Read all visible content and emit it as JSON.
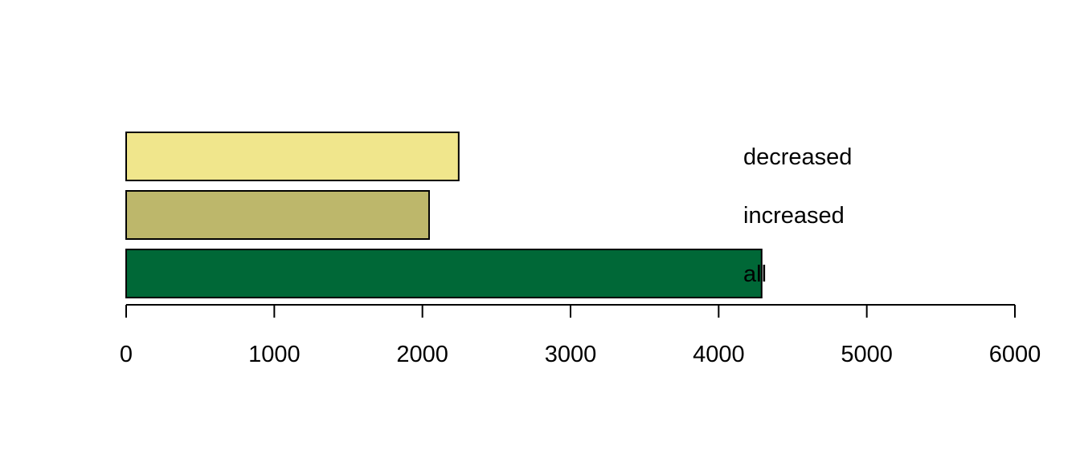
{
  "chart_data": {
    "type": "bar",
    "orientation": "horizontal",
    "categories": [
      "all",
      "increased",
      "decreased"
    ],
    "values": [
      4290,
      2045,
      2245
    ],
    "colors": [
      "#006837",
      "#bdb76b",
      "#f0e68c"
    ],
    "xlim": [
      0,
      6000
    ],
    "xticks": [
      0,
      1000,
      2000,
      3000,
      4000,
      5000,
      6000
    ],
    "xtick_labels": [
      "0",
      "1000",
      "2000",
      "3000",
      "4000",
      "5000",
      "6000"
    ],
    "grid": false,
    "title": "",
    "xlabel": "",
    "ylabel": ""
  }
}
